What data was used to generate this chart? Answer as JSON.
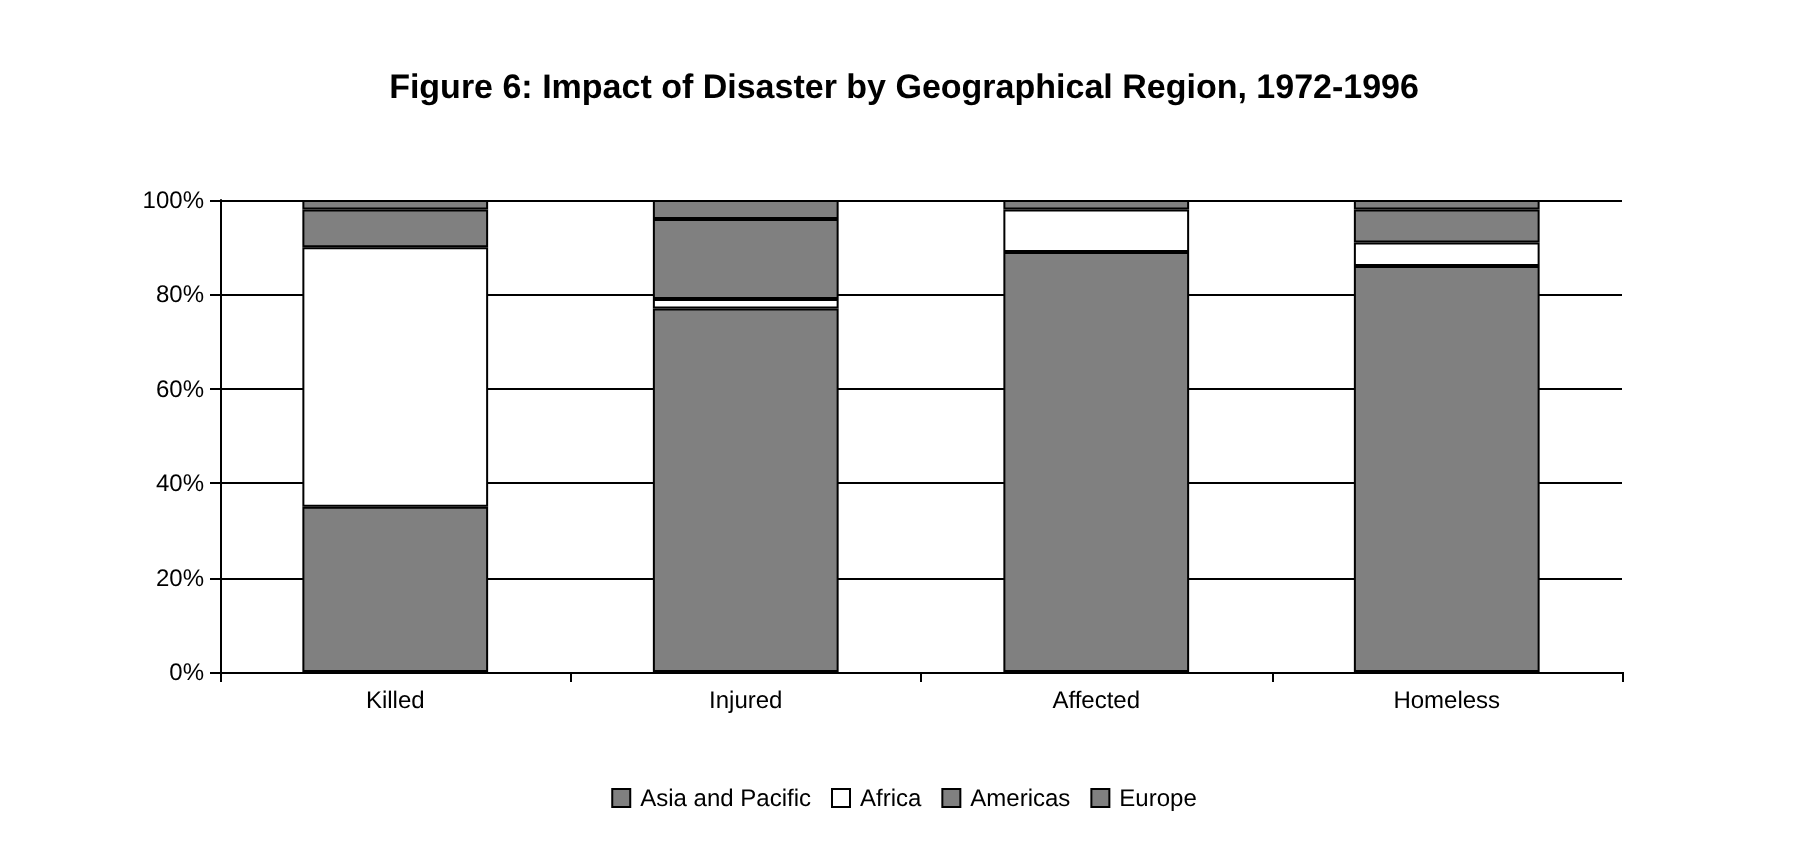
{
  "chart_data": {
    "type": "bar",
    "title": "Figure 6: Impact of Disaster by Geographical Region, 1972-1996",
    "categories": [
      "Killed",
      "Injured",
      "Affected",
      "Homeless"
    ],
    "stacked": true,
    "series": [
      {
        "name": "Asia and Pacific",
        "color": "#808080",
        "values": [
          35,
          77,
          89,
          86
        ]
      },
      {
        "name": "Africa",
        "color": "#ffffff",
        "values": [
          55,
          2,
          9,
          5
        ]
      },
      {
        "name": "Americas",
        "color": "#808080",
        "values": [
          8,
          17,
          2,
          7
        ]
      },
      {
        "name": "Europe",
        "color": "#808080",
        "values": [
          2,
          4,
          null,
          2
        ]
      }
    ],
    "ylim": [
      0,
      100
    ],
    "yticks": [
      {
        "value": 0,
        "label": "0%"
      },
      {
        "value": 20,
        "label": "20%"
      },
      {
        "value": 40,
        "label": "40%"
      },
      {
        "value": 60,
        "label": "60%"
      },
      {
        "value": 80,
        "label": "80%"
      },
      {
        "value": 100,
        "label": "100%"
      }
    ],
    "grid": "y",
    "legend": "bottom"
  }
}
